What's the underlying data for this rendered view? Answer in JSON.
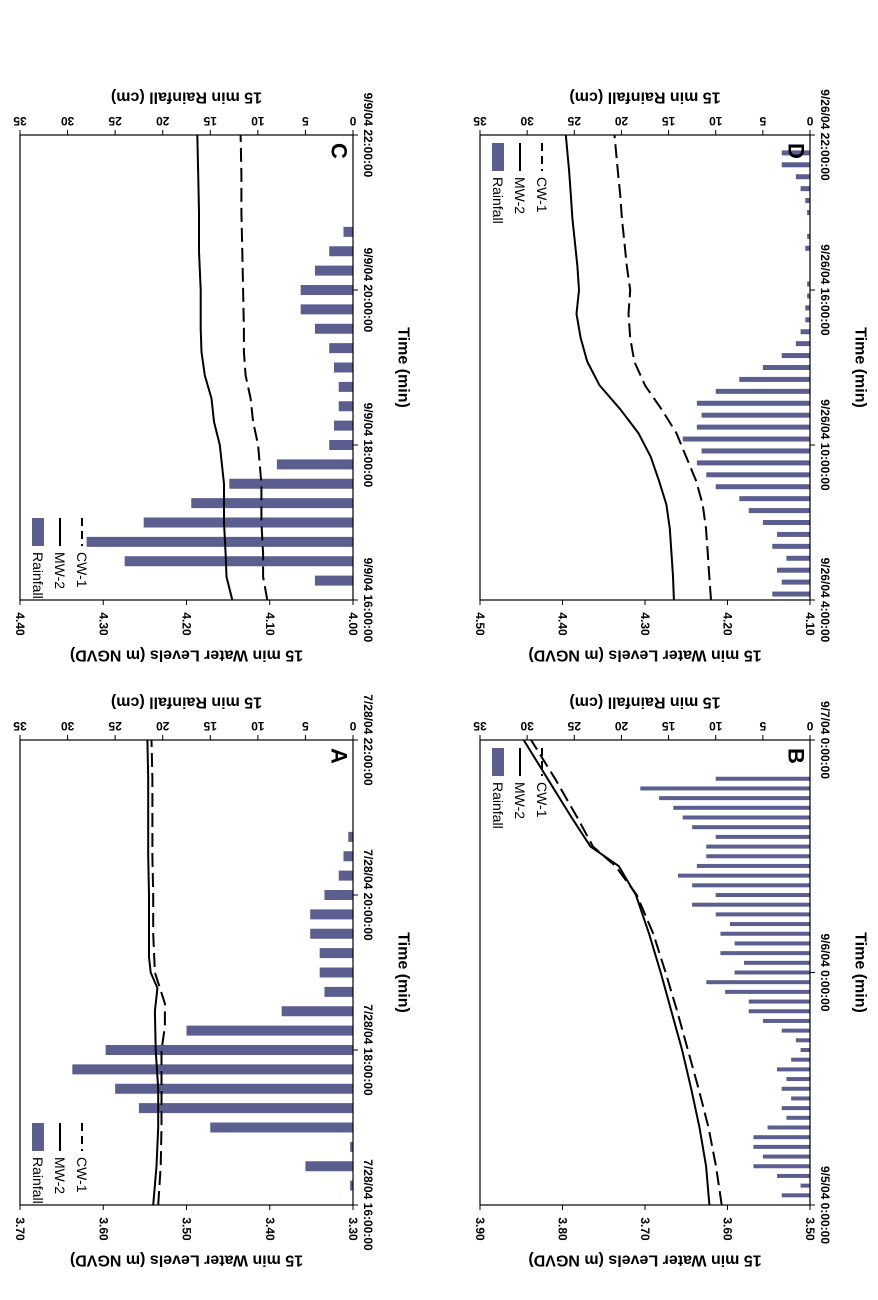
{
  "colors": {
    "rainfall": "#5a5f8f",
    "line": "#000000",
    "background": "#ffffff"
  },
  "chart_data": [
    {
      "panel": "A",
      "type": "bar+line",
      "xlabel": "Time (min)",
      "ylabel": "15 min Water Levels (m NGVD)",
      "y2label": "15 min Rainfall (cm)",
      "x_ticks": [
        "7/28/04 16:00:00",
        "7/28/04 18:00:00",
        "7/28/04 20:00:00",
        "7/28/04 22:00:00"
      ],
      "x_range_hours": [
        16,
        22
      ],
      "ylim": [
        3.3,
        3.7
      ],
      "y_ticks": [
        "3.30",
        "3.40",
        "3.50",
        "3.60",
        "3.70"
      ],
      "y2lim": [
        0,
        35
      ],
      "y2_ticks": [
        "0",
        "5",
        "10",
        "15",
        "20",
        "25",
        "30",
        "35"
      ],
      "legend": [
        "Rainfall",
        "MW-2",
        "CW-1"
      ],
      "legend_position": "top-right",
      "rainfall_time_hours": [
        16.25,
        16.5,
        16.75,
        17.0,
        17.25,
        17.5,
        17.75,
        18.0,
        18.25,
        18.5,
        18.75,
        19.0,
        19.25,
        19.5,
        19.75,
        20.0,
        20.25,
        20.5,
        20.75
      ],
      "rainfall_values": [
        0.3,
        5.0,
        0.3,
        15.0,
        22.5,
        25.0,
        29.5,
        26.0,
        17.5,
        7.5,
        3.0,
        3.5,
        3.5,
        4.5,
        4.5,
        3.0,
        1.5,
        1.0,
        0.5
      ],
      "series": [
        {
          "name": "MW-2",
          "style": "solid",
          "x": [
            16.0,
            16.5,
            17.0,
            17.5,
            18.0,
            18.5,
            18.8,
            19.0,
            19.2,
            19.5,
            20.0,
            20.5,
            21.0,
            21.5,
            22.0
          ],
          "y": [
            3.54,
            3.536,
            3.534,
            3.534,
            3.537,
            3.538,
            3.535,
            3.543,
            3.545,
            3.545,
            3.545,
            3.546,
            3.546,
            3.546,
            3.547
          ]
        },
        {
          "name": "CW-1",
          "style": "dashed",
          "x": [
            16.0,
            16.5,
            17.0,
            17.5,
            18.0,
            18.3,
            18.6,
            18.8,
            19.0,
            19.5,
            20.0,
            20.5,
            21.0,
            21.5,
            22.0
          ],
          "y": [
            3.534,
            3.531,
            3.53,
            3.53,
            3.53,
            3.526,
            3.526,
            3.532,
            3.538,
            3.54,
            3.54,
            3.541,
            3.541,
            3.541,
            3.542
          ]
        }
      ]
    },
    {
      "panel": "B",
      "type": "bar+line",
      "xlabel": "Time (min)",
      "ylabel": "15 min Water Levels (m NGVD)",
      "y2label": "15 min Rainfall (cm)",
      "x_ticks": [
        "9/5/04 0:00:00",
        "9/6/04 0:00:00",
        "9/7/04 0:00:00"
      ],
      "x_range_hours": [
        0,
        48
      ],
      "ylim": [
        3.5,
        3.9
      ],
      "y_ticks": [
        "3.50",
        "3.60",
        "3.70",
        "3.80",
        "3.90"
      ],
      "y2lim": [
        0,
        35
      ],
      "y2_ticks": [
        "0",
        "5",
        "10",
        "15",
        "20",
        "25",
        "30",
        "35"
      ],
      "legend": [
        "Rainfall",
        "MW-2",
        "CW-1"
      ],
      "legend_position": "top-left",
      "rainfall_time_hours": [
        1.0,
        2.0,
        3.0,
        4.0,
        5.0,
        6.0,
        7.0,
        8.0,
        9.0,
        10.0,
        11.0,
        12.0,
        13.0,
        14.0,
        15.0,
        16.0,
        17.0,
        18.0,
        19.0,
        20.0,
        21.0,
        22.0,
        23.0,
        24.0,
        25.0,
        26.0,
        27.0,
        28.0,
        29.0,
        30.0,
        31.0,
        32.0,
        33.0,
        34.0,
        35.0,
        36.0,
        37.0,
        38.0,
        39.0,
        40.0,
        41.0,
        42.0,
        43.0,
        44.0
      ],
      "rainfall_values": [
        3.0,
        1.0,
        3.5,
        6.0,
        5.0,
        6.0,
        6.0,
        4.5,
        2.5,
        3.0,
        2.0,
        3.0,
        2.5,
        3.5,
        2.0,
        1.0,
        1.5,
        3.0,
        5.0,
        6.5,
        6.5,
        9.0,
        11.0,
        8.0,
        7.0,
        9.5,
        8.0,
        9.5,
        8.5,
        10.0,
        12.5,
        10.0,
        12.5,
        14.0,
        12.0,
        11.0,
        11.0,
        10.0,
        12.5,
        13.5,
        14.5,
        16.0,
        18.0,
        10.0
      ],
      "series": [
        {
          "name": "MW-2",
          "style": "solid",
          "x": [
            0.0,
            4.0,
            8.0,
            12.0,
            16.0,
            20.0,
            24.0,
            28.0,
            32.0,
            35.0,
            37.0,
            40.0,
            44.0,
            48.0
          ],
          "y": [
            3.622,
            3.626,
            3.634,
            3.644,
            3.655,
            3.668,
            3.681,
            3.695,
            3.711,
            3.732,
            3.766,
            3.789,
            3.818,
            3.847
          ]
        },
        {
          "name": "CW-1",
          "style": "dashed",
          "x": [
            0.0,
            4.0,
            8.0,
            12.0,
            16.0,
            20.0,
            24.0,
            28.0,
            32.0,
            35.0,
            37.0,
            40.0,
            44.0,
            48.0
          ],
          "y": [
            3.607,
            3.614,
            3.623,
            3.635,
            3.648,
            3.661,
            3.675,
            3.69,
            3.71,
            3.736,
            3.763,
            3.782,
            3.809,
            3.838
          ]
        }
      ]
    },
    {
      "panel": "C",
      "type": "bar+line",
      "xlabel": "Time (min)",
      "ylabel": "15 min Water Levels (m NGVD)",
      "y2label": "15 min Rainfall (cm)",
      "x_ticks": [
        "9/9/04 16:00:00",
        "9/9/04 18:00:00",
        "9/9/04 20:00:00",
        "9/9/04 22:00:00"
      ],
      "x_range_hours": [
        16,
        22
      ],
      "ylim": [
        4.0,
        4.4
      ],
      "y_ticks": [
        "4.00",
        "4.10",
        "4.20",
        "4.30",
        "4.40"
      ],
      "y2lim": [
        0,
        35
      ],
      "y2_ticks": [
        "0",
        "5",
        "10",
        "15",
        "20",
        "25",
        "30",
        "35"
      ],
      "legend": [
        "Rainfall",
        "MW-2",
        "CW-1"
      ],
      "legend_position": "top-right",
      "rainfall_time_hours": [
        16.25,
        16.5,
        16.75,
        17.0,
        17.25,
        17.5,
        17.75,
        18.0,
        18.25,
        18.5,
        18.75,
        19.0,
        19.25,
        19.5,
        19.75,
        20.0,
        20.25,
        20.5,
        20.75
      ],
      "rainfall_values": [
        4.0,
        24.0,
        28.0,
        22.0,
        17.0,
        13.0,
        8.0,
        2.5,
        2.0,
        1.5,
        1.5,
        2.0,
        2.5,
        4.0,
        5.5,
        5.5,
        4.0,
        2.5,
        1.0
      ],
      "series": [
        {
          "name": "MW-2",
          "style": "solid",
          "x": [
            16.0,
            16.3,
            16.6,
            17.0,
            17.5,
            18.0,
            18.3,
            18.6,
            18.9,
            19.2,
            19.5,
            20.0,
            20.5,
            21.0,
            21.5,
            22.0
          ],
          "y": [
            4.145,
            4.152,
            4.153,
            4.155,
            4.155,
            4.16,
            4.167,
            4.17,
            4.178,
            4.182,
            4.183,
            4.183,
            4.185,
            4.185,
            4.186,
            4.187
          ]
        },
        {
          "name": "CW-1",
          "style": "dashed",
          "x": [
            16.0,
            16.3,
            16.6,
            17.0,
            17.5,
            18.0,
            18.3,
            18.6,
            18.9,
            19.2,
            19.5,
            20.0,
            20.5,
            21.0,
            21.5,
            22.0
          ],
          "y": [
            4.103,
            4.108,
            4.108,
            4.11,
            4.11,
            4.114,
            4.12,
            4.123,
            4.129,
            4.131,
            4.131,
            4.132,
            4.133,
            4.134,
            4.134,
            4.135
          ]
        }
      ]
    },
    {
      "panel": "D",
      "type": "bar+line",
      "xlabel": "Time (min)",
      "ylabel": "15 min Water Levels (m NGVD)",
      "y2label": "15 min Rainfall (cm)",
      "x_ticks": [
        "9/26/04 4:00:00",
        "9/26/04 10:00:00",
        "9/26/04 16:00:00",
        "9/26/04 22:00:00"
      ],
      "x_range_hours": [
        4,
        23.5
      ],
      "ylim": [
        4.1,
        4.5
      ],
      "y_ticks": [
        "4.10",
        "4.20",
        "4.30",
        "4.40",
        "4.50"
      ],
      "y2lim": [
        0,
        35
      ],
      "y2_ticks": [
        "0",
        "5",
        "10",
        "15",
        "20",
        "25",
        "30",
        "35"
      ],
      "legend": [
        "Rainfall",
        "MW-2",
        "CW-1"
      ],
      "legend_position": "top-left",
      "rainfall_time_hours": [
        4.25,
        4.75,
        5.25,
        5.75,
        6.25,
        6.75,
        7.25,
        7.75,
        8.25,
        8.75,
        9.25,
        9.75,
        10.25,
        10.75,
        11.25,
        11.75,
        12.25,
        12.75,
        13.25,
        13.75,
        14.25,
        14.75,
        15.25,
        15.75,
        16.25,
        16.75,
        17.25,
        18.75,
        19.25,
        20.25,
        20.75,
        21.25,
        21.75,
        22.25,
        22.75
      ],
      "rainfall_values": [
        4.0,
        3.0,
        3.5,
        2.5,
        4.0,
        3.5,
        5.0,
        6.5,
        7.5,
        10.0,
        11.0,
        12.0,
        11.5,
        13.5,
        12.0,
        11.5,
        12.0,
        10.0,
        7.5,
        5.0,
        3.0,
        1.5,
        1.0,
        0.5,
        0.5,
        0.3,
        0.3,
        0.5,
        0.3,
        0.3,
        0.5,
        1.0,
        1.5,
        3.0,
        3.0
      ],
      "series": [
        {
          "name": "MW-2",
          "style": "solid",
          "x": [
            4.0,
            5.0,
            6.0,
            7.0,
            8.0,
            9.0,
            10.0,
            11.0,
            12.0,
            13.0,
            14.0,
            15.0,
            16.0,
            17.0,
            18.0,
            19.0,
            20.0,
            21.0,
            22.0,
            23.5
          ],
          "y": [
            4.265,
            4.266,
            4.268,
            4.27,
            4.274,
            4.283,
            4.293,
            4.308,
            4.33,
            4.355,
            4.37,
            4.378,
            4.383,
            4.38,
            4.382,
            4.385,
            4.388,
            4.39,
            4.392,
            4.396
          ]
        },
        {
          "name": "CW-1",
          "style": "dashed",
          "x": [
            4.0,
            5.0,
            6.0,
            7.0,
            8.0,
            9.0,
            10.0,
            11.0,
            12.0,
            13.0,
            14.0,
            15.0,
            16.0,
            17.0,
            18.0,
            19.0,
            20.0,
            21.0,
            22.0,
            23.5
          ],
          "y": [
            4.22,
            4.222,
            4.224,
            4.226,
            4.23,
            4.238,
            4.25,
            4.262,
            4.28,
            4.3,
            4.313,
            4.318,
            4.32,
            4.318,
            4.322,
            4.325,
            4.328,
            4.33,
            4.333,
            4.337
          ]
        }
      ]
    }
  ]
}
